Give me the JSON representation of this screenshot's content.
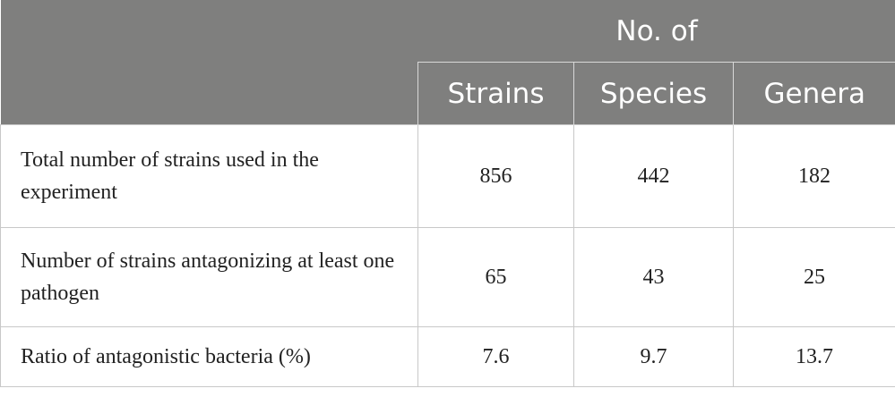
{
  "table": {
    "group_header": "No. of",
    "columns": [
      "Strains",
      "Species",
      "Genera"
    ],
    "rows": [
      {
        "label": "Total number of strains used in the experiment",
        "values": [
          856,
          442,
          182
        ]
      },
      {
        "label": "Number of strains antagonizing at least one pathogen",
        "values": [
          65,
          43,
          25
        ]
      },
      {
        "label": "Ratio of antagonistic bacteria (%)",
        "values": [
          7.6,
          9.7,
          13.7
        ]
      }
    ]
  }
}
